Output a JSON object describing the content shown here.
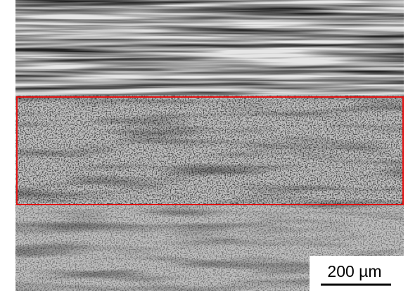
{
  "scale_bar": {
    "label": "200 µm"
  }
}
